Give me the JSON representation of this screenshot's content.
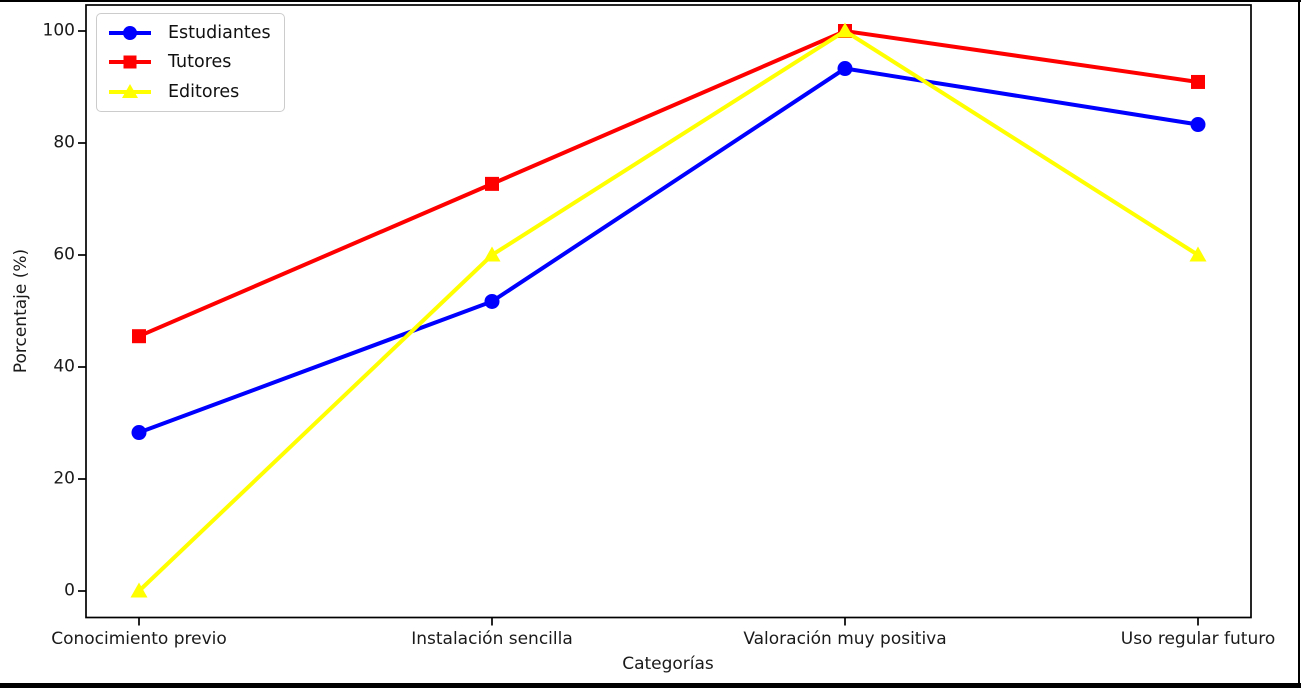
{
  "chart_data": {
    "type": "line",
    "title": "",
    "xlabel": "Categorías",
    "ylabel": "Porcentaje (%)",
    "categories": [
      "Conocimiento previo",
      "Instalación sencilla",
      "Valoración muy positiva",
      "Uso regular futuro"
    ],
    "series": [
      {
        "name": "Estudiantes",
        "color": "#0000ff",
        "marker": "circle",
        "values": [
          28.3,
          51.7,
          93.3,
          83.3
        ]
      },
      {
        "name": "Tutores",
        "color": "#ff0000",
        "marker": "square",
        "values": [
          45.5,
          72.7,
          100,
          90.9
        ]
      },
      {
        "name": "Editores",
        "color": "#ffff00",
        "marker": "triangle",
        "values": [
          0,
          60,
          100,
          60
        ]
      }
    ],
    "yticks": [
      0,
      20,
      40,
      60,
      80,
      100
    ],
    "ylim": [
      -5,
      105
    ],
    "grid": false,
    "legend": {
      "position": "upper-left",
      "entries": [
        "Estudiantes",
        "Tutores",
        "Editores"
      ]
    },
    "axis_color": "#000000",
    "text_color": "#1a1a1a",
    "frame_color": "#000000"
  }
}
